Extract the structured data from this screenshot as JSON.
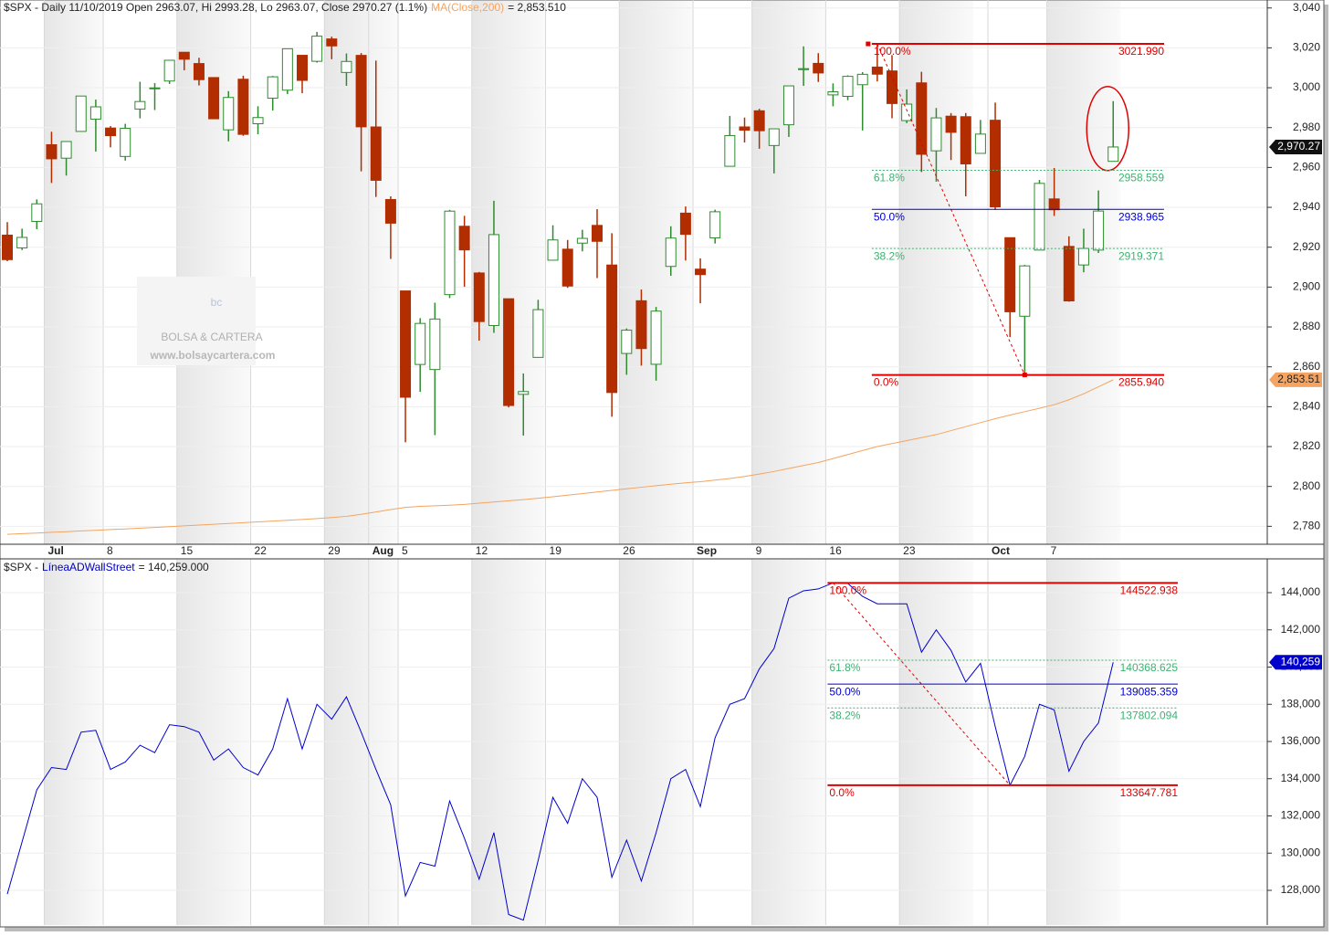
{
  "chart_data": [
    {
      "type": "candlestick",
      "title": "$SPX - Daily 11/10/2019 Open 2963.07, Hi 2993.28, Lo 2963.07, Close 2970.27 (1.1%)",
      "watermark": [
        "bc",
        "BOLSA & CARTERA",
        "www.bolsaycartera.com"
      ],
      "categories": [
        null,
        null,
        null,
        "Jul",
        null,
        null,
        null,
        "8",
        null,
        null,
        null,
        null,
        "15",
        null,
        null,
        null,
        null,
        "22",
        null,
        null,
        null,
        null,
        "29",
        null,
        null,
        "Aug",
        null,
        "5",
        null,
        null,
        null,
        null,
        "12",
        null,
        null,
        null,
        null,
        "19",
        null,
        null,
        null,
        null,
        "26",
        null,
        null,
        null,
        null,
        "Sep",
        null,
        null,
        null,
        "9",
        null,
        null,
        null,
        null,
        "16",
        null,
        null,
        null,
        null,
        "23",
        null,
        null,
        null,
        null,
        null,
        "Oct",
        null,
        null,
        null,
        "7",
        null,
        null,
        null,
        null
      ],
      "open": [
        2926.07,
        2919.66,
        2932.94,
        2971.41,
        2964.66,
        2978.08,
        2984.25,
        2979.77,
        2965.52,
        2989.3,
        2999.62,
        3003.36,
        3017.8,
        3012.13,
        3005.1,
        2978.87,
        3004.26,
        2981.93,
        2994.74,
        2998.77,
        3016.26,
        3013.25,
        3024.47,
        3007.66,
        3016.22,
        2980.32,
        2943.9,
        2898.07,
        2861.18,
        2858.65,
        2896.21,
        2930.51,
        2907.07,
        2880.72,
        2894.15,
        2846.2,
        2864.74,
        2913.48,
        2919.01,
        2922.04,
        2930.94,
        2911.07,
        2866.7,
        2893.14,
        2861.28,
        2910.37,
        2937.09,
        2909.01,
        2924.67,
        2960.6,
        2980.33,
        2988.43,
        2971.01,
        2981.41,
        3009.08,
        3012.21,
        2996.41,
        2995.67,
        3001.5,
        3010.36,
        3008.42,
        2983.5,
        3002.43,
        2968.35,
        2985.73,
        2985.47,
        2967.07,
        2983.69,
        2924.78,
        2885.38,
        2918.56,
        2944.23,
        2920.4,
        2911.1,
        2918.55,
        2963.07
      ],
      "high": [
        2932.59,
        2929.3,
        2943.98,
        2977.93,
        2973.21,
        2995.84,
        2994.03,
        2980.76,
        2981.9,
        3002.98,
        3002.33,
        3013.92,
        3017.8,
        3015.02,
        3005.26,
        2998.28,
        3006.02,
        2990.71,
        3005.9,
        3019.59,
        3016.31,
        3027.98,
        3025.61,
        3017.19,
        3017.4,
        3013.59,
        2945.5,
        2898.07,
        2884.4,
        2892.17,
        2938.72,
        2935.75,
        2907.58,
        2943.31,
        2894.15,
        2856.67,
        2893.63,
        2931,
        2923.63,
        2928.73,
        2939.08,
        2927.01,
        2879.27,
        2898.79,
        2890.03,
        2930.5,
        2940.43,
        2914.39,
        2938.84,
        2985.86,
        2985.03,
        2989.43,
        2979.39,
        3000.93,
        3020.74,
        3017.33,
        3002.19,
        3006.21,
        3007.83,
        3021.99,
        3016.37,
        2999.15,
        3007.98,
        2989.82,
        2987.28,
        2987.31,
        2983.85,
        2992.53,
        2924.78,
        2911.13,
        2953.74,
        2959.75,
        2925.47,
        2929.32,
        2948.46,
        2993.28
      ],
      "low": [
        2912.99,
        2918.57,
        2929.05,
        2952.22,
        2955.92,
        2977.96,
        2967.97,
        2970.09,
        2963.44,
        2984.62,
        2988.8,
        3001.87,
        3008.77,
        3001.15,
        2984.25,
        2973.09,
        2975.86,
        2976.65,
        2988.56,
        2996.82,
        2997.24,
        3012.59,
        3014.3,
        3000.94,
        2958.08,
        2945.23,
        2914.11,
        2822.12,
        2847.42,
        2825.71,
        2894.47,
        2900.15,
        2873.14,
        2877.05,
        2839.64,
        2825.51,
        2864.74,
        2913.48,
        2899.6,
        2917.91,
        2904.51,
        2834.97,
        2856,
        2860.59,
        2853.05,
        2905.67,
        2913.32,
        2891.85,
        2921.86,
        2960.6,
        2972.51,
        2969.39,
        2957.01,
        2975.31,
        3000.92,
        3002.9,
        2990.67,
        2993.73,
        2978.57,
        3003.16,
        2984.68,
        2982.23,
        2957.73,
        2952.86,
        2963.71,
        2945.53,
        2967.07,
        2938.7,
        2874.93,
        2855.94,
        2918.56,
        2935.68,
        2892.66,
        2907.41,
        2917.12,
        2963.07
      ],
      "close": [
        2913.78,
        2924.92,
        2941.76,
        2964.33,
        2973.01,
        2995.82,
        2990.41,
        2975.95,
        2979.63,
        2993.07,
        2999.91,
        3013.77,
        3014.3,
        3004.04,
        2984.42,
        2995.11,
        2976.61,
        2985.03,
        3005.47,
        3019.56,
        3003.67,
        3025.86,
        3020.97,
        3013.18,
        2980.38,
        2953.56,
        2932.05,
        2844.74,
        2881.77,
        2883.98,
        2938.09,
        2918.65,
        2882.7,
        2926.32,
        2840.6,
        2847.6,
        2888.68,
        2923.65,
        2900.51,
        2924.43,
        2922.95,
        2847.11,
        2878.38,
        2869.16,
        2887.94,
        2924.58,
        2926.46,
        2906.27,
        2937.78,
        2976,
        2978.71,
        2978.43,
        2979.39,
        3000.93,
        3009.57,
        3007.39,
        2997.96,
        3005.7,
        3006.73,
        3006.79,
        2992.07,
        2991.78,
        2966.6,
        2984.87,
        2977.62,
        2961.79,
        2976.74,
        2940.25,
        2887.61,
        2910.63,
        2952.01,
        2938.79,
        2893.06,
        2919.4,
        2938.13,
        2970.27
      ],
      "price_tag": "2,970.27",
      "up_color": "#2e8b2e",
      "down_color": "#b22d00",
      "series": [
        {
          "name": "MA(Close,200)",
          "color": "#f4a460",
          "value_label": "= 2,853.510",
          "tag": "2,853.51",
          "values": [
            2776,
            2776.3,
            2776.6,
            2777,
            2777.3,
            2777.7,
            2778,
            2778.4,
            2778.7,
            2779.1,
            2779.4,
            2779.8,
            2780.2,
            2780.6,
            2781,
            2781.4,
            2781.8,
            2782.2,
            2782.6,
            2783,
            2783.4,
            2783.9,
            2784.4,
            2785,
            2786,
            2787.2,
            2788.4,
            2789.5,
            2790,
            2790.3,
            2790.6,
            2791,
            2791.6,
            2792.2,
            2792.8,
            2793.4,
            2794.1,
            2794.8,
            2795.6,
            2796.4,
            2797.2,
            2798,
            2798.8,
            2799.6,
            2800.4,
            2801.1,
            2801.8,
            2802.4,
            2803.2,
            2804,
            2805,
            2806.2,
            2807.5,
            2809,
            2810.5,
            2812,
            2814,
            2816,
            2818,
            2820,
            2821.5,
            2823,
            2824.5,
            2826,
            2828,
            2830,
            2832,
            2834,
            2835.8,
            2837.5,
            2839.2,
            2841,
            2843.5,
            2846.5,
            2850,
            2853.51
          ]
        }
      ],
      "ylim": [
        2771,
        3044
      ],
      "yticks": [
        {
          "value": 2780,
          "label": "2,780"
        },
        {
          "value": 2800,
          "label": "2,800"
        },
        {
          "value": 2820,
          "label": "2,820"
        },
        {
          "value": 2840,
          "label": "2,840"
        },
        {
          "value": 2860,
          "label": "2,860"
        },
        {
          "value": 2880,
          "label": "2,880"
        },
        {
          "value": 2900,
          "label": "2,900"
        },
        {
          "value": 2920,
          "label": "2,920"
        },
        {
          "value": 2940,
          "label": "2,940"
        },
        {
          "value": 2960,
          "label": "2,960"
        },
        {
          "value": 2980,
          "label": "2,980"
        },
        {
          "value": 3000,
          "label": "3,000"
        },
        {
          "value": 3020,
          "label": "3,020"
        },
        {
          "value": 3040,
          "label": "3,040"
        }
      ],
      "fib": {
        "labels": [
          "100.0%",
          "61.8%",
          "50.0%",
          "38.2%",
          "0.0%"
        ],
        "values": [
          3021.99,
          2958.559,
          2938.965,
          2919.371,
          2855.94
        ],
        "value_labels": [
          "3021.990",
          "2958.559",
          "2938.965",
          "2919.371",
          "2855.940"
        ],
        "colors": [
          "#e00000",
          "#3cb371",
          "#0000cc",
          "#3cb371",
          "#e00000"
        ]
      }
    },
    {
      "type": "line",
      "title": "$SPX -",
      "series": [
        {
          "name": "LíneaADWallStreet",
          "color": "#0000cc",
          "value_label": "= 140,259.000",
          "tag": "140,259",
          "values": [
            127800,
            130600,
            133400,
            134600,
            134500,
            136500,
            136600,
            134500,
            134900,
            135800,
            135400,
            136900,
            136800,
            136500,
            135000,
            135600,
            134600,
            134200,
            135600,
            138300,
            135600,
            138000,
            137200,
            138400,
            136500,
            134500,
            132600,
            127700,
            129500,
            129300,
            132800,
            130800,
            128600,
            131100,
            126700,
            126400,
            129600,
            133000,
            131600,
            134000,
            133000,
            128700,
            130700,
            128500,
            131100,
            134000,
            134500,
            132500,
            136200,
            138000,
            138300,
            139900,
            141000,
            143700,
            144100,
            144200,
            144522.938,
            144500,
            143800,
            143400,
            143400,
            143400,
            140800,
            142000,
            140900,
            139200,
            140200,
            136800,
            133647.781,
            135200,
            138000,
            137700,
            134400,
            136000,
            137000,
            140259
          ]
        }
      ],
      "ylim": [
        126135,
        145816
      ],
      "yticks": [
        {
          "value": 128000,
          "label": "128,000"
        },
        {
          "value": 130000,
          "label": "130,000"
        },
        {
          "value": 132000,
          "label": "132,000"
        },
        {
          "value": 134000,
          "label": "134,000"
        },
        {
          "value": 136000,
          "label": "136,000"
        },
        {
          "value": 138000,
          "label": "138,000"
        },
        {
          "value": 140000,
          "label": "140,000"
        },
        {
          "value": 142000,
          "label": "142,000"
        },
        {
          "value": 144000,
          "label": "144,000"
        }
      ],
      "fib": {
        "labels": [
          "100.0%",
          "61.8%",
          "50.0%",
          "38.2%",
          "0.0%"
        ],
        "values": [
          144522.938,
          140368.625,
          139085.359,
          137802.094,
          133647.781
        ],
        "value_labels": [
          "144522.938",
          "140368.625",
          "139085.359",
          "137802.094",
          "133647.781"
        ],
        "colors": [
          "#e00000",
          "#3cb371",
          "#0000cc",
          "#3cb371",
          "#e00000"
        ]
      }
    }
  ]
}
